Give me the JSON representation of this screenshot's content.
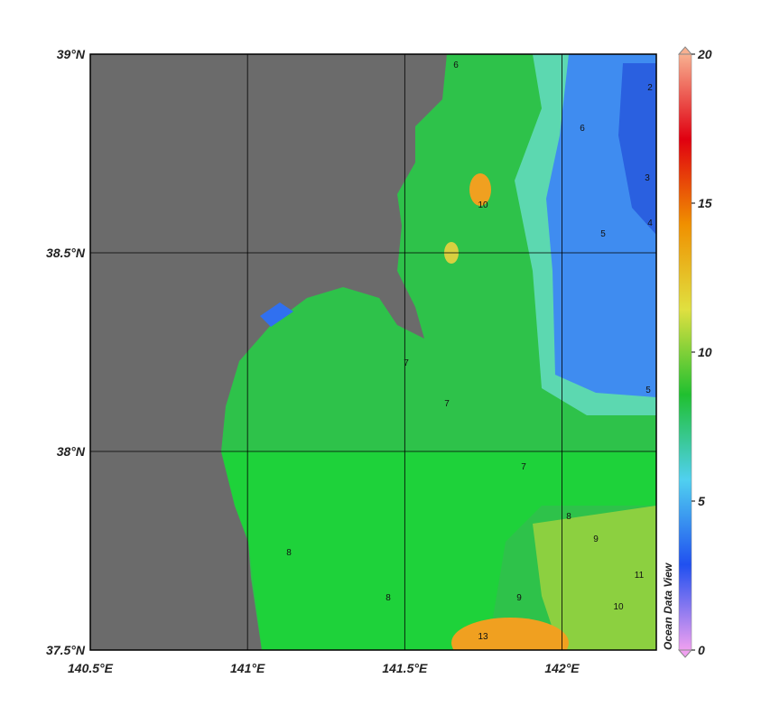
{
  "map": {
    "xlim": [
      140.5,
      142.3
    ],
    "ylim": [
      37.5,
      39
    ],
    "xticks": [
      {
        "value": 140.5,
        "label": "140.5°E"
      },
      {
        "value": 141,
        "label": "141°E"
      },
      {
        "value": 141.5,
        "label": "141.5°E"
      },
      {
        "value": 142,
        "label": "142°E"
      }
    ],
    "yticks": [
      {
        "value": 37.5,
        "label": "37.5°N"
      },
      {
        "value": 38,
        "label": "38°N"
      },
      {
        "value": 38.5,
        "label": "38.5°N"
      },
      {
        "value": 39,
        "label": "39°N"
      }
    ],
    "contour_labels": [
      6,
      6,
      7,
      7,
      7,
      8,
      8,
      8,
      9,
      9,
      10,
      10,
      11,
      13,
      5,
      5,
      4,
      3,
      2
    ]
  },
  "colorbar": {
    "range": [
      0,
      20
    ],
    "ticks": [
      0,
      5,
      10,
      15,
      20
    ],
    "colors": [
      "#f0a0f0",
      "#2050f0",
      "#50d0f0",
      "#20c030",
      "#e0e040",
      "#f09000",
      "#e00010",
      "#f8b090"
    ],
    "credit": "Ocean Data View"
  }
}
